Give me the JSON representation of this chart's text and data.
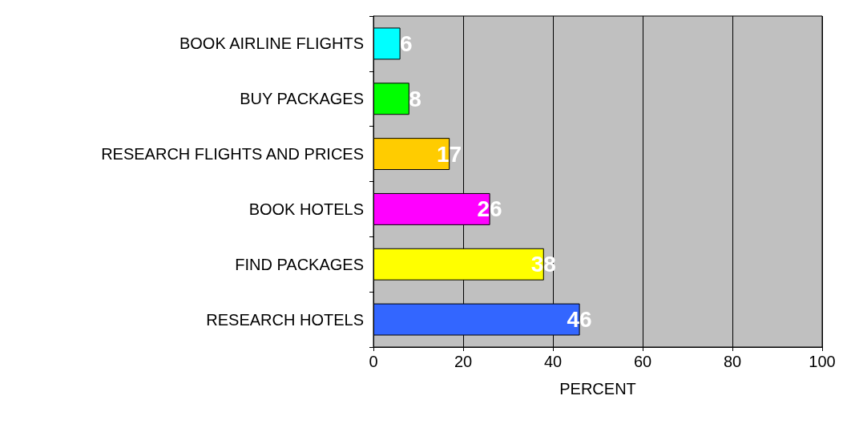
{
  "chart_data": {
    "type": "bar",
    "orientation": "horizontal",
    "xlabel": "PERCENT",
    "categories": [
      "BOOK AIRLINE FLIGHTS",
      "BUY PACKAGES",
      "RESEARCH FLIGHTS AND PRICES",
      "BOOK HOTELS",
      "FIND PACKAGES",
      "RESEARCH HOTELS"
    ],
    "values": [
      6,
      8,
      17,
      26,
      38,
      46
    ],
    "colors": [
      "#00ffff",
      "#00ff00",
      "#ffcc00",
      "#ff00ff",
      "#ffff00",
      "#3366ff"
    ],
    "xlim": [
      0,
      100
    ],
    "xticks": [
      0,
      20,
      40,
      60,
      80,
      100
    ],
    "grid": "x",
    "data_labels": true
  }
}
